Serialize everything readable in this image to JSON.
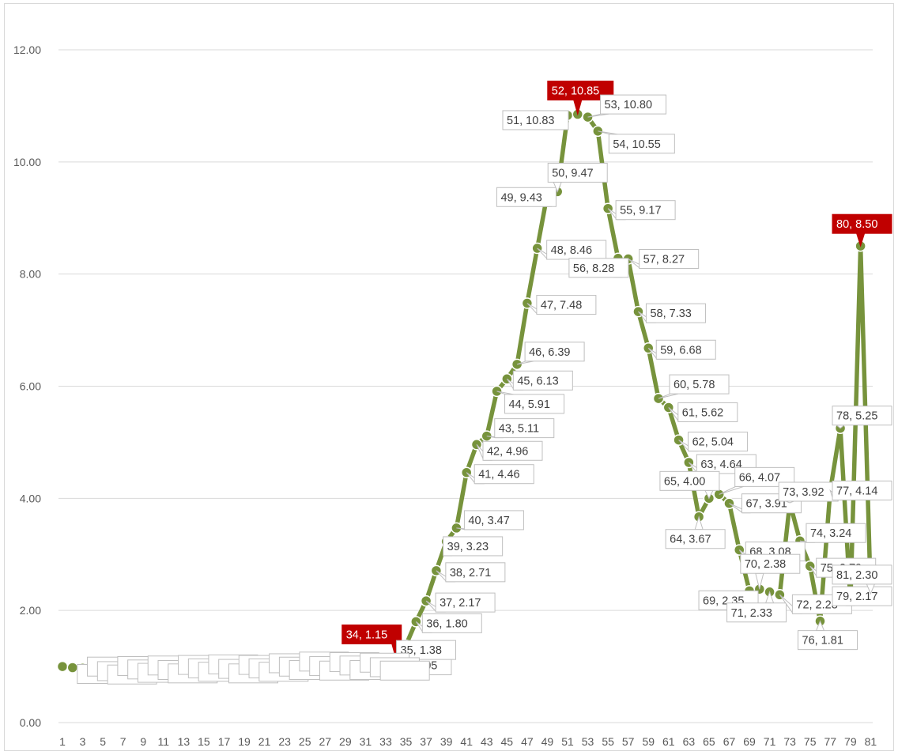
{
  "chart_data": {
    "type": "line",
    "title": "",
    "xlabel": "",
    "ylabel": "",
    "ylim": [
      0,
      12
    ],
    "ytick_values": [
      0,
      2,
      4,
      6,
      8,
      10,
      12
    ],
    "ytick_labels": [
      "0.00",
      "2.00",
      "4.00",
      "6.00",
      "8.00",
      "10.00",
      "12.00"
    ],
    "xtick_labels": [
      "1",
      "3",
      "5",
      "7",
      "9",
      "11",
      "13",
      "15",
      "17",
      "19",
      "21",
      "23",
      "25",
      "27",
      "29",
      "31",
      "33",
      "35",
      "37",
      "39",
      "41",
      "43",
      "45",
      "47",
      "49",
      "51",
      "53",
      "55",
      "57",
      "59",
      "61",
      "63",
      "65",
      "67",
      "69",
      "71",
      "73",
      "75",
      "77",
      "79",
      "81"
    ],
    "grid": "horizontal",
    "legend": "none",
    "colors": {
      "line": "#77933c",
      "marker": "#77933c",
      "marker_outline": "#ffffff",
      "grid": "#d9d9d9",
      "highlight_label_fill": "#c00000",
      "label_border": "#bfbfbf"
    },
    "x": [
      1,
      2,
      3,
      4,
      5,
      6,
      7,
      8,
      9,
      10,
      11,
      12,
      13,
      14,
      15,
      16,
      17,
      18,
      19,
      20,
      21,
      22,
      23,
      24,
      25,
      26,
      27,
      28,
      29,
      30,
      31,
      32,
      33,
      34,
      35,
      36,
      37,
      38,
      39,
      40,
      41,
      42,
      43,
      44,
      45,
      46,
      47,
      48,
      49,
      50,
      51,
      52,
      53,
      54,
      55,
      56,
      57,
      58,
      59,
      60,
      61,
      62,
      63,
      64,
      65,
      66,
      67,
      68,
      69,
      70,
      71,
      72,
      73,
      74,
      75,
      76,
      77,
      78,
      79,
      80,
      81
    ],
    "series": [
      {
        "values": [
          1.0,
          0.98,
          0.97,
          0.96,
          0.97,
          0.98,
          0.99,
          1.0,
          0.99,
          0.98,
          0.99,
          1.0,
          1.01,
          1.02,
          1.01,
          1.0,
          0.99,
          1.0,
          1.01,
          1.02,
          1.03,
          1.04,
          1.05,
          1.06,
          1.05,
          1.04,
          1.05,
          1.06,
          1.05,
          1.04,
          1.03,
          1.04,
          1.05,
          1.15,
          1.38,
          1.8,
          2.17,
          2.71,
          3.23,
          3.47,
          4.46,
          4.96,
          5.11,
          5.91,
          6.13,
          6.39,
          7.48,
          8.46,
          9.43,
          9.47,
          10.83,
          10.85,
          10.8,
          10.55,
          9.17,
          8.28,
          8.27,
          7.33,
          6.68,
          5.78,
          5.62,
          5.04,
          4.64,
          3.67,
          4.0,
          4.07,
          3.91,
          3.08,
          2.35,
          2.38,
          2.33,
          2.28,
          3.92,
          3.24,
          2.79,
          1.81,
          4.14,
          5.25,
          2.17,
          8.5,
          2.3
        ]
      }
    ],
    "data_labels": [
      {
        "x": 33,
        "text": "33, 1.05",
        "highlight": false
      },
      {
        "x": 34,
        "text": "34, 1.15",
        "highlight": true
      },
      {
        "x": 35,
        "text": "35, 1.38",
        "highlight": false
      },
      {
        "x": 36,
        "text": "36, 1.80",
        "highlight": false
      },
      {
        "x": 37,
        "text": "37, 2.17",
        "highlight": false
      },
      {
        "x": 38,
        "text": "38, 2.71",
        "highlight": false
      },
      {
        "x": 39,
        "text": "39, 3.23",
        "highlight": false
      },
      {
        "x": 40,
        "text": "40, 3.47",
        "highlight": false
      },
      {
        "x": 41,
        "text": "41, 4.46",
        "highlight": false
      },
      {
        "x": 42,
        "text": "42, 4.96",
        "highlight": false
      },
      {
        "x": 43,
        "text": "43, 5.11",
        "highlight": false
      },
      {
        "x": 44,
        "text": "44, 5.91",
        "highlight": false
      },
      {
        "x": 45,
        "text": "45, 6.13",
        "highlight": false
      },
      {
        "x": 46,
        "text": "46, 6.39",
        "highlight": false
      },
      {
        "x": 47,
        "text": "47, 7.48",
        "highlight": false
      },
      {
        "x": 48,
        "text": "48, 8.46",
        "highlight": false
      },
      {
        "x": 49,
        "text": "49, 9.43",
        "highlight": false
      },
      {
        "x": 50,
        "text": "50, 9.47",
        "highlight": false
      },
      {
        "x": 51,
        "text": "51, 10.83",
        "highlight": false
      },
      {
        "x": 52,
        "text": "52, 10.85",
        "highlight": true
      },
      {
        "x": 53,
        "text": "53, 10.80",
        "highlight": false
      },
      {
        "x": 54,
        "text": "54, 10.55",
        "highlight": false
      },
      {
        "x": 55,
        "text": "55, 9.17",
        "highlight": false
      },
      {
        "x": 56,
        "text": "56, 8.28",
        "highlight": false
      },
      {
        "x": 57,
        "text": "57, 8.27",
        "highlight": false
      },
      {
        "x": 58,
        "text": "58, 7.33",
        "highlight": false
      },
      {
        "x": 59,
        "text": "59, 6.68",
        "highlight": false
      },
      {
        "x": 60,
        "text": "60, 5.78",
        "highlight": false
      },
      {
        "x": 61,
        "text": "61, 5.62",
        "highlight": false
      },
      {
        "x": 62,
        "text": "62, 5.04",
        "highlight": false
      },
      {
        "x": 63,
        "text": "63, 4.64",
        "highlight": false
      },
      {
        "x": 64,
        "text": "64, 3.67",
        "highlight": false
      },
      {
        "x": 65,
        "text": "65, 4.00",
        "highlight": false
      },
      {
        "x": 66,
        "text": "66, 4.07",
        "highlight": false
      },
      {
        "x": 67,
        "text": "67, 3.91",
        "highlight": false
      },
      {
        "x": 68,
        "text": "68, 3.08",
        "highlight": false
      },
      {
        "x": 69,
        "text": "69, 2.35",
        "highlight": false
      },
      {
        "x": 70,
        "text": "70, 2.38",
        "highlight": false
      },
      {
        "x": 71,
        "text": "71, 2.33",
        "highlight": false
      },
      {
        "x": 72,
        "text": "72, 2.28",
        "highlight": false
      },
      {
        "x": 73,
        "text": "73, 3.92",
        "highlight": false
      },
      {
        "x": 74,
        "text": "74, 3.24",
        "highlight": false
      },
      {
        "x": 75,
        "text": "75, 2.79",
        "highlight": false
      },
      {
        "x": 76,
        "text": "76, 1.81",
        "highlight": false
      },
      {
        "x": 77,
        "text": "77, 4.14",
        "highlight": false
      },
      {
        "x": 78,
        "text": "78, 5.25",
        "highlight": false
      },
      {
        "x": 79,
        "text": "79, 2.17",
        "highlight": false
      },
      {
        "x": 80,
        "text": "80, 8.50",
        "highlight": true
      },
      {
        "x": 81,
        "text": "81, 2.30",
        "highlight": false
      }
    ]
  }
}
